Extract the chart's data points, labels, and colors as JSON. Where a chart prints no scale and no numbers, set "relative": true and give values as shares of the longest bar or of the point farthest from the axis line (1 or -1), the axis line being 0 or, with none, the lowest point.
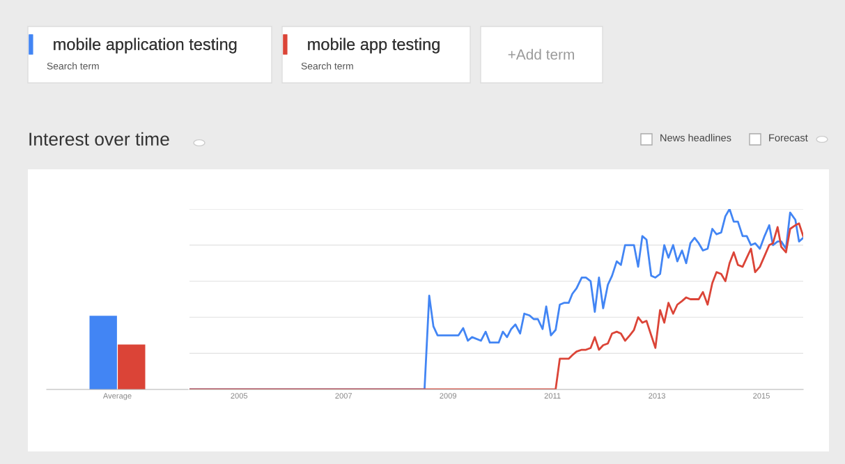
{
  "chart_data": [
    {
      "type": "bar",
      "relative": true,
      "categories": [
        "Average"
      ],
      "series": [
        {
          "color": "#4285f4",
          "values": [
            1
          ]
        },
        {
          "color": "#db4437",
          "values": [
            0.61
          ]
        }
      ]
    },
    {
      "type": "line",
      "relative": true,
      "title": "Interest over time",
      "legend": "top left",
      "grid": "y",
      "annotations": [
        "Search term",
        "Search term",
        "+Add term",
        "News headlines",
        "Forecast"
      ],
      "xlim": [
        2004.05,
        2015.8
      ],
      "xticks": [
        2005,
        2007,
        2009,
        2011,
        2013,
        2015
      ],
      "series": [
        {
          "name": "mobile application testing",
          "color": "#4285f4",
          "x": [
            2004.05,
            2008.55,
            2008.64,
            2008.72,
            2008.8,
            2009.2,
            2009.29,
            2009.38,
            2009.46,
            2009.63,
            2009.72,
            2009.8,
            2009.97,
            2010.05,
            2010.13,
            2010.21,
            2010.29,
            2010.38,
            2010.46,
            2010.56,
            2010.64,
            2010.72,
            2010.81,
            2010.88,
            2010.97,
            2011.06,
            2011.14,
            2011.22,
            2011.31,
            2011.38,
            2011.46,
            2011.56,
            2011.64,
            2011.73,
            2011.81,
            2011.89,
            2011.97,
            2012.06,
            2012.14,
            2012.23,
            2012.31,
            2012.39,
            2012.56,
            2012.64,
            2012.72,
            2012.8,
            2012.89,
            2012.97,
            2013.06,
            2013.14,
            2013.22,
            2013.31,
            2013.39,
            2013.48,
            2013.56,
            2013.64,
            2013.72,
            2013.8,
            2013.88,
            2013.97,
            2014.06,
            2014.14,
            2014.23,
            2014.31,
            2014.39,
            2014.47,
            2014.55,
            2014.64,
            2014.72,
            2014.8,
            2014.88,
            2014.97,
            2015.06,
            2015.15,
            2015.22,
            2015.31,
            2015.38,
            2015.47,
            2015.55,
            2015.65,
            2015.72,
            2015.8
          ],
          "values": [
            0,
            0,
            0.52,
            0.35,
            0.3,
            0.3,
            0.34,
            0.27,
            0.29,
            0.27,
            0.32,
            0.26,
            0.26,
            0.32,
            0.29,
            0.335,
            0.36,
            0.31,
            0.42,
            0.41,
            0.39,
            0.39,
            0.335,
            0.46,
            0.3,
            0.33,
            0.47,
            0.48,
            0.48,
            0.53,
            0.56,
            0.62,
            0.62,
            0.6,
            0.43,
            0.62,
            0.45,
            0.58,
            0.63,
            0.71,
            0.69,
            0.8,
            0.8,
            0.68,
            0.85,
            0.83,
            0.63,
            0.62,
            0.64,
            0.8,
            0.73,
            0.8,
            0.71,
            0.77,
            0.7,
            0.81,
            0.84,
            0.81,
            0.77,
            0.78,
            0.89,
            0.86,
            0.87,
            0.96,
            1,
            0.93,
            0.93,
            0.85,
            0.85,
            0.8,
            0.81,
            0.78,
            0.85,
            0.91,
            0.8,
            0.82,
            0.82,
            0.78,
            0.98,
            0.94,
            0.82,
            0.84
          ]
        },
        {
          "name": "mobile app testing",
          "color": "#db4437",
          "x": [
            2004.05,
            2011.06,
            2011.14,
            2011.31,
            2011.38,
            2011.46,
            2011.56,
            2011.64,
            2011.73,
            2011.81,
            2011.89,
            2011.97,
            2012.06,
            2012.14,
            2012.23,
            2012.31,
            2012.39,
            2012.48,
            2012.56,
            2012.64,
            2012.72,
            2012.8,
            2012.89,
            2012.97,
            2013.06,
            2013.14,
            2013.22,
            2013.31,
            2013.39,
            2013.48,
            2013.56,
            2013.64,
            2013.8,
            2013.88,
            2013.97,
            2014.06,
            2014.14,
            2014.23,
            2014.31,
            2014.39,
            2014.47,
            2014.55,
            2014.64,
            2014.72,
            2014.8,
            2014.88,
            2014.97,
            2015.06,
            2015.15,
            2015.22,
            2015.31,
            2015.38,
            2015.47,
            2015.55,
            2015.65,
            2015.72,
            2015.8
          ],
          "values": [
            0,
            0,
            0.17,
            0.17,
            0.19,
            0.21,
            0.22,
            0.22,
            0.23,
            0.29,
            0.22,
            0.245,
            0.255,
            0.31,
            0.32,
            0.31,
            0.27,
            0.3,
            0.33,
            0.4,
            0.37,
            0.38,
            0.3,
            0.23,
            0.44,
            0.37,
            0.48,
            0.42,
            0.47,
            0.49,
            0.51,
            0.5,
            0.5,
            0.54,
            0.47,
            0.59,
            0.65,
            0.64,
            0.6,
            0.7,
            0.76,
            0.69,
            0.68,
            0.73,
            0.78,
            0.65,
            0.68,
            0.74,
            0.8,
            0.81,
            0.9,
            0.79,
            0.76,
            0.89,
            0.91,
            0.92,
            0.85
          ]
        }
      ]
    }
  ]
}
